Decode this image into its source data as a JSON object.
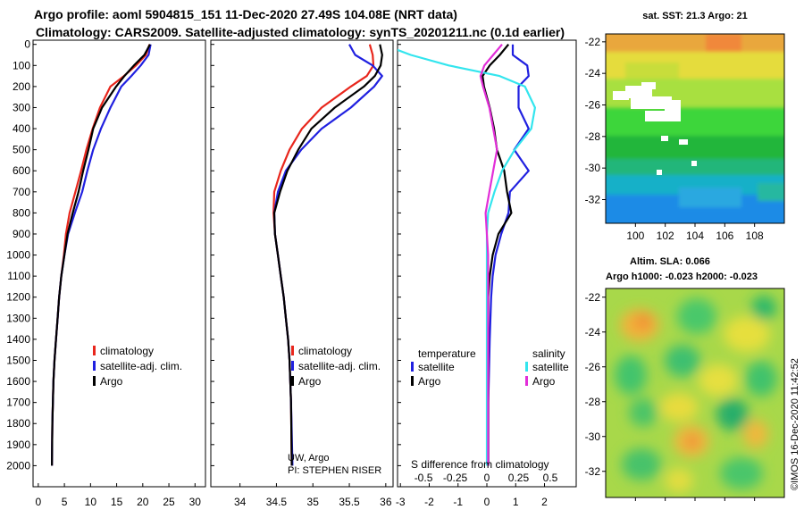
{
  "header": {
    "title_line1": "Argo profile: aoml 5904815_151 11-Dec-2020 27.49S 104.08E (NRT data)",
    "title_line2": "Climatology: CARS2009. Satellite-adjusted climatology: synTS_20201211.nc (0.1d earlier)"
  },
  "colors": {
    "climatology": "#e8261c",
    "satellite": "#2020e0",
    "argo": "#000000",
    "satellite_salinity": "#33e5ee",
    "argo_salinity": "#e22ed8"
  },
  "chart_data": [
    {
      "type": "line",
      "name": "temperature-profile",
      "xlabel": "",
      "ylabel": "",
      "xlim": [
        -1,
        32
      ],
      "ylim": [
        2100,
        -20
      ],
      "xticks": [
        0,
        5,
        10,
        15,
        20,
        25,
        30
      ],
      "yticks": [
        0,
        100,
        200,
        300,
        400,
        500,
        600,
        700,
        800,
        900,
        1000,
        1100,
        1200,
        1300,
        1400,
        1500,
        1600,
        1700,
        1800,
        1900,
        2000
      ],
      "legend": [
        "climatology",
        "satellite-adj. clim.",
        "Argo"
      ],
      "series": [
        {
          "name": "climatology",
          "color": "#e8261c",
          "x": [
            21.3,
            20.6,
            18.7,
            16.4,
            13.8,
            11.8,
            10.4,
            9.2,
            8.2,
            7.1,
            6.0,
            5.3,
            4.9,
            4.4,
            4.0,
            3.7,
            3.4,
            3.1,
            2.9,
            2.7,
            2.6
          ],
          "y": [
            0,
            50,
            100,
            150,
            200,
            300,
            400,
            500,
            600,
            700,
            800,
            900,
            1000,
            1100,
            1200,
            1300,
            1400,
            1500,
            1600,
            1800,
            2000
          ]
        },
        {
          "name": "satellite-adj. clim.",
          "color": "#2020e0",
          "x": [
            21.5,
            21.1,
            19.6,
            17.8,
            15.9,
            13.8,
            12.0,
            10.5,
            9.4,
            8.4,
            7.0,
            5.7,
            5.0,
            4.4,
            4.0,
            3.7,
            3.4,
            3.1,
            2.9,
            2.7,
            2.6
          ],
          "y": [
            0,
            50,
            100,
            150,
            200,
            300,
            400,
            500,
            600,
            700,
            800,
            900,
            1000,
            1100,
            1200,
            1300,
            1400,
            1500,
            1600,
            1800,
            2000
          ]
        },
        {
          "name": "Argo",
          "color": "#000000",
          "x": [
            21.4,
            20.3,
            18.3,
            16.5,
            14.9,
            12.2,
            10.5,
            9.6,
            8.6,
            7.7,
            6.6,
            5.6,
            5.0,
            4.4,
            4.0,
            3.7,
            3.4,
            3.1,
            2.9,
            2.7,
            2.6
          ],
          "y": [
            0,
            50,
            100,
            150,
            200,
            300,
            400,
            500,
            600,
            700,
            800,
            900,
            1000,
            1100,
            1200,
            1300,
            1400,
            1500,
            1600,
            1800,
            2000
          ]
        }
      ]
    },
    {
      "type": "line",
      "name": "salinity-profile",
      "xlabel": "",
      "ylabel": "",
      "xlim": [
        33.6,
        36.1
      ],
      "ylim": [
        2100,
        -20
      ],
      "xticks": [
        34,
        34.5,
        35,
        35.5,
        36
      ],
      "legend": [
        "climatology",
        "satellite-adj. clim.",
        "Argo"
      ],
      "annotation_line1": "UW, Argo",
      "annotation_line2": "PI: STEPHEN RISER",
      "series": [
        {
          "name": "climatology",
          "color": "#e8261c",
          "x": [
            35.78,
            35.82,
            35.83,
            35.74,
            35.52,
            35.12,
            34.85,
            34.68,
            34.56,
            34.47,
            34.46,
            34.48,
            34.52,
            34.56,
            34.6,
            34.63,
            34.66,
            34.68,
            34.7,
            34.71
          ],
          "y": [
            0,
            50,
            100,
            150,
            200,
            300,
            400,
            500,
            600,
            700,
            800,
            900,
            1000,
            1100,
            1200,
            1300,
            1400,
            1500,
            1700,
            2000
          ]
        },
        {
          "name": "satellite-adj. clim.",
          "color": "#2020e0",
          "x": [
            35.5,
            35.58,
            35.82,
            35.95,
            35.84,
            35.52,
            35.12,
            34.84,
            34.63,
            34.52,
            34.47,
            34.48,
            34.52,
            34.56,
            34.6,
            34.63,
            34.66,
            34.68,
            34.7,
            34.72
          ],
          "y": [
            0,
            50,
            100,
            150,
            200,
            300,
            400,
            500,
            600,
            700,
            800,
            900,
            1000,
            1100,
            1200,
            1300,
            1400,
            1500,
            1700,
            2000
          ]
        },
        {
          "name": "Argo",
          "color": "#000000",
          "x": [
            35.92,
            35.95,
            35.93,
            35.85,
            35.7,
            35.3,
            34.98,
            34.8,
            34.65,
            34.55,
            34.47,
            34.48,
            34.52,
            34.56,
            34.6,
            34.63,
            34.66,
            34.68,
            34.7,
            34.71
          ],
          "y": [
            0,
            50,
            100,
            150,
            200,
            300,
            400,
            500,
            600,
            700,
            800,
            900,
            1000,
            1100,
            1200,
            1300,
            1400,
            1500,
            1700,
            2000
          ]
        }
      ]
    },
    {
      "type": "line",
      "name": "difference-from-climatology",
      "xlabel": "S difference from climatology",
      "xlim": [
        -3.1,
        3.1
      ],
      "ylim": [
        2100,
        -20
      ],
      "xticks": [
        -3,
        -2,
        -1,
        0,
        1,
        2
      ],
      "xtick_labels": [
        "-3",
        "-2",
        "-1",
        "0",
        "1",
        "2"
      ],
      "xticks2": [
        -0.5,
        -0.25,
        0,
        0.25,
        0.5
      ],
      "xtick2_labels": [
        "-0.5",
        "-0.25",
        "0",
        "0.25",
        "0.5"
      ],
      "legend_temperature_title": "temperature",
      "legend_salinity_title": "salinity",
      "legend_temperature": [
        "satellite",
        "Argo"
      ],
      "legend_salinity": [
        "satellite",
        "Argo"
      ],
      "series": [
        {
          "name": "temperature satellite",
          "color": "#2020e0",
          "x": [
            0.9,
            0.9,
            1.4,
            1.45,
            1.1,
            1.1,
            1.45,
            0.95,
            1.45,
            0.8,
            0.75,
            0.5,
            0.3,
            0.2,
            0.15,
            0.1,
            0.05,
            0.05
          ],
          "y": [
            0,
            50,
            100,
            150,
            200,
            300,
            400,
            500,
            600,
            700,
            800,
            900,
            1000,
            1100,
            1200,
            1400,
            1700,
            2000
          ]
        },
        {
          "name": "temperature Argo",
          "color": "#000000",
          "x": [
            0.75,
            0.45,
            0.1,
            -0.15,
            -0.1,
            0.1,
            0.25,
            0.35,
            0.6,
            0.7,
            0.85,
            0.4,
            0.2,
            0.1,
            0.05,
            0.05,
            0.05,
            0.05
          ],
          "y": [
            0,
            50,
            100,
            150,
            200,
            300,
            400,
            500,
            600,
            700,
            800,
            900,
            1000,
            1100,
            1200,
            1400,
            1700,
            2000
          ]
        },
        {
          "name": "salinity satellite",
          "color": "#33e5ee",
          "x": [
            -0.82,
            -0.6,
            -0.3,
            0.1,
            0.3,
            0.38,
            0.35,
            0.22,
            0.12,
            0.06,
            0.01,
            0.0,
            0.0,
            0.0,
            0.0,
            0.0,
            0.0,
            0.0
          ],
          "y": [
            0,
            50,
            100,
            150,
            200,
            300,
            400,
            500,
            600,
            700,
            800,
            900,
            1000,
            1100,
            1200,
            1400,
            1700,
            2000
          ]
        },
        {
          "name": "salinity Argo",
          "color": "#e22ed8",
          "x": [
            0.12,
            0.05,
            -0.02,
            -0.05,
            -0.03,
            0.02,
            0.05,
            0.08,
            0.05,
            0.02,
            -0.01,
            0.0,
            0.01,
            0.01,
            0.01,
            0.01,
            0.01,
            0.01
          ],
          "y": [
            0,
            50,
            100,
            150,
            200,
            300,
            400,
            500,
            600,
            700,
            800,
            900,
            1000,
            1100,
            1200,
            1400,
            1700,
            2000
          ]
        }
      ]
    },
    {
      "type": "heatmap",
      "name": "sst-map",
      "title": "sat. SST: 21.3 Argo: 21",
      "xticks": [
        100,
        102,
        104,
        106,
        108
      ],
      "yticks": [
        -22,
        -24,
        -26,
        -28,
        -30,
        -32
      ],
      "xlim": [
        98,
        110
      ],
      "ylim": [
        -33.5,
        -21.5
      ]
    },
    {
      "type": "heatmap",
      "name": "sla-map",
      "title_line1": "Altim. SLA: 0.066",
      "title_line2": "Argo h1000: -0.023 h2000: -0.023",
      "yticks": [
        -22,
        -24,
        -26,
        -28,
        -30,
        -32
      ],
      "xlim": [
        98,
        110
      ],
      "ylim": [
        -33.5,
        -21.5
      ]
    }
  ],
  "footer": {
    "credit": "©IMOS 16-Dec-2020 11:42:52"
  }
}
